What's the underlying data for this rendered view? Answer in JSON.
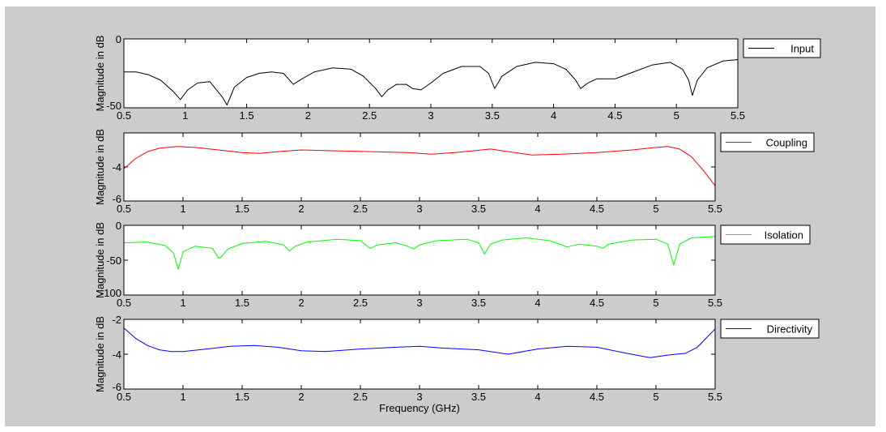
{
  "figure": {
    "background": "#cccccc"
  },
  "chart_data": [
    {
      "type": "line",
      "ylabel": "Magnitude in dB",
      "xlabel": "",
      "xlim": [
        0.5,
        5.5
      ],
      "ylim": [
        -50,
        0
      ],
      "xticks": [
        "0.5",
        "1",
        "1.5",
        "2",
        "2.5",
        "3",
        "3.5",
        "4",
        "4.5",
        "5",
        "5.5"
      ],
      "yticks": [
        "0",
        "-50"
      ],
      "legend": "top-right outside",
      "series": [
        {
          "name": "Input",
          "color": "#000000",
          "x": [
            0.5,
            0.6,
            0.7,
            0.8,
            0.9,
            0.96,
            1.02,
            1.1,
            1.2,
            1.3,
            1.34,
            1.4,
            1.5,
            1.6,
            1.7,
            1.8,
            1.88,
            1.95,
            2.05,
            2.2,
            2.35,
            2.45,
            2.55,
            2.6,
            2.65,
            2.72,
            2.8,
            2.85,
            2.92,
            3.0,
            3.1,
            3.25,
            3.4,
            3.47,
            3.52,
            3.58,
            3.7,
            3.85,
            4.0,
            4.1,
            4.18,
            4.22,
            4.28,
            4.35,
            4.5,
            4.62,
            4.8,
            4.95,
            5.05,
            5.1,
            5.13,
            5.17,
            5.25,
            5.38,
            5.5
          ],
          "y": [
            -24,
            -24,
            -26,
            -30,
            -38,
            -44,
            -37,
            -32,
            -31,
            -42,
            -48,
            -35,
            -28,
            -25,
            -24,
            -25,
            -33,
            -29,
            -24,
            -21,
            -22,
            -27,
            -36,
            -42,
            -37,
            -33,
            -33,
            -36,
            -37,
            -32,
            -25,
            -20,
            -20,
            -25,
            -36,
            -27,
            -20,
            -17,
            -18,
            -22,
            -30,
            -36,
            -32,
            -29,
            -29,
            -25,
            -19,
            -17,
            -22,
            -30,
            -41,
            -30,
            -21,
            -16,
            -15
          ]
        }
      ]
    },
    {
      "type": "line",
      "ylabel": "Magnitude in dB",
      "xlabel": "",
      "xlim": [
        0.5,
        5.5
      ],
      "ylim": [
        -6,
        -2
      ],
      "xticks": [
        "0.5",
        "1",
        "1.5",
        "2",
        "2.5",
        "3",
        "3.5",
        "4",
        "4.5",
        "5",
        "5.5"
      ],
      "yticks": [
        "-4",
        "-6"
      ],
      "legend": "top-right outside",
      "series": [
        {
          "name": "Coupling",
          "color": "#ff0000",
          "x": [
            0.5,
            0.6,
            0.7,
            0.8,
            0.95,
            1.1,
            1.3,
            1.5,
            1.65,
            1.8,
            2.0,
            2.3,
            2.6,
            2.9,
            3.1,
            3.3,
            3.45,
            3.6,
            3.75,
            3.95,
            4.2,
            4.5,
            4.8,
            5.0,
            5.1,
            5.2,
            5.3,
            5.4,
            5.5
          ],
          "y": [
            -4.1,
            -3.5,
            -3.1,
            -2.9,
            -2.8,
            -2.85,
            -3.0,
            -3.15,
            -3.2,
            -3.1,
            -3.0,
            -3.05,
            -3.1,
            -3.15,
            -3.25,
            -3.15,
            -3.05,
            -2.95,
            -3.1,
            -3.3,
            -3.25,
            -3.15,
            -3.0,
            -2.85,
            -2.8,
            -2.95,
            -3.4,
            -4.2,
            -5.1
          ]
        }
      ]
    },
    {
      "type": "line",
      "ylabel": "Magnitude in dB",
      "xlabel": "",
      "xlim": [
        0.5,
        5.5
      ],
      "ylim": [
        -100,
        0
      ],
      "xticks": [
        "0.5",
        "1",
        "1.5",
        "2",
        "2.5",
        "3",
        "3.5",
        "4",
        "4.5",
        "5",
        "5.5"
      ],
      "yticks": [
        "0",
        "-50",
        "-100"
      ],
      "legend": "top-right outside",
      "series": [
        {
          "name": "Isolation",
          "color": "#00ff00",
          "x": [
            0.5,
            0.7,
            0.85,
            0.92,
            0.96,
            1.0,
            1.1,
            1.25,
            1.3,
            1.32,
            1.38,
            1.5,
            1.7,
            1.85,
            1.9,
            1.95,
            2.05,
            2.3,
            2.5,
            2.58,
            2.65,
            2.8,
            2.9,
            2.95,
            3.0,
            3.15,
            3.4,
            3.5,
            3.55,
            3.6,
            3.7,
            3.9,
            4.1,
            4.2,
            4.25,
            4.35,
            4.5,
            4.55,
            4.6,
            4.8,
            5.0,
            5.1,
            5.15,
            5.2,
            5.3,
            5.5
          ],
          "y": [
            -25,
            -24,
            -29,
            -40,
            -63,
            -38,
            -30,
            -33,
            -47,
            -46,
            -34,
            -26,
            -23,
            -28,
            -37,
            -30,
            -24,
            -20,
            -22,
            -33,
            -28,
            -25,
            -30,
            -34,
            -28,
            -22,
            -20,
            -25,
            -41,
            -27,
            -21,
            -18,
            -22,
            -28,
            -31,
            -27,
            -30,
            -33,
            -27,
            -21,
            -20,
            -27,
            -57,
            -27,
            -18,
            -16
          ]
        }
      ]
    },
    {
      "type": "line",
      "ylabel": "Magnitude in dB",
      "xlabel": "Frequency (GHz)",
      "xlim": [
        0.5,
        5.5
      ],
      "ylim": [
        -6,
        -2
      ],
      "xticks": [
        "0.5",
        "1",
        "1.5",
        "2",
        "2.5",
        "3",
        "3.5",
        "4",
        "4.5",
        "5",
        "5.5"
      ],
      "yticks": [
        "-2",
        "-4",
        "-6"
      ],
      "legend": "top-right outside",
      "series": [
        {
          "name": "Directivity",
          "color": "#0000ff",
          "x": [
            0.5,
            0.6,
            0.7,
            0.8,
            0.9,
            1.0,
            1.2,
            1.4,
            1.6,
            1.8,
            2.0,
            2.2,
            2.5,
            2.8,
            3.0,
            3.2,
            3.5,
            3.75,
            4.0,
            4.25,
            4.5,
            4.75,
            4.95,
            5.1,
            5.25,
            5.35,
            5.45,
            5.5
          ],
          "y": [
            -2.5,
            -3.1,
            -3.5,
            -3.75,
            -3.85,
            -3.85,
            -3.7,
            -3.55,
            -3.5,
            -3.6,
            -3.8,
            -3.85,
            -3.7,
            -3.6,
            -3.55,
            -3.65,
            -3.75,
            -4.0,
            -3.7,
            -3.55,
            -3.6,
            -3.95,
            -4.2,
            -4.05,
            -3.95,
            -3.6,
            -2.9,
            -2.55
          ]
        }
      ]
    }
  ]
}
